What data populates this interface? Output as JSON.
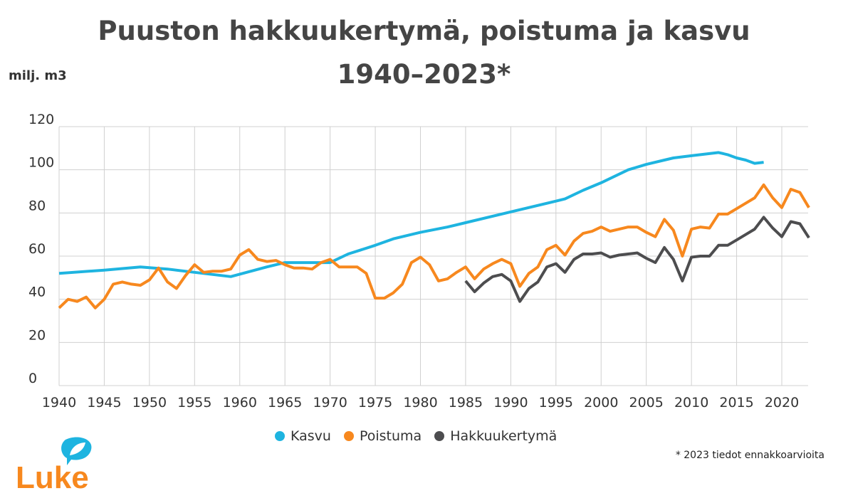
{
  "title_line1": "Puuston hakkuukertymä, poistuma ja kasvu",
  "title_line2": "1940–2023*",
  "footnote": "* 2023 tiedot ennakkoarvioita",
  "logo_text": "Luke",
  "chart_data": {
    "type": "line",
    "title": "Puuston hakkuukertymä, poistuma ja kasvu 1940–2023*",
    "ylabel": "milj. m3",
    "xlabel": "",
    "ylim": [
      0,
      120
    ],
    "xlim": [
      1940,
      2023
    ],
    "yticks": [
      "0",
      "20",
      "40",
      "60",
      "80",
      "100",
      "120"
    ],
    "xticks": [
      "1940",
      "1945",
      "1950",
      "1955",
      "1960",
      "1965",
      "1970",
      "1975",
      "1980",
      "1985",
      "1990",
      "1995",
      "2000",
      "2005",
      "2010",
      "2015",
      "2020"
    ],
    "grid": true,
    "legend_position": "bottom",
    "series": [
      {
        "name": "Kasvu",
        "color": "#1eb4e0",
        "x": [
          1940,
          1945,
          1949,
          1952,
          1955,
          1958,
          1959,
          1963,
          1965,
          1970,
          1972,
          1975,
          1977,
          1980,
          1983,
          1985,
          1990,
          1995,
          1996,
          1998,
          2000,
          2003,
          2005,
          2007,
          2008,
          2010,
          2012,
          2013,
          2014,
          2015,
          2016,
          2017,
          2018
        ],
        "values": [
          52,
          53.5,
          55,
          54,
          52.5,
          51,
          50.5,
          55,
          57,
          57,
          61,
          65,
          68,
          71,
          73.5,
          75.5,
          80.5,
          85.5,
          86.5,
          90.5,
          94,
          100,
          102.5,
          104.5,
          105.5,
          106.5,
          107.5,
          108,
          107,
          105.5,
          104.5,
          103,
          103.5
        ]
      },
      {
        "name": "Poistuma",
        "color": "#f7881e",
        "x": [
          1940,
          1941,
          1942,
          1943,
          1944,
          1945,
          1946,
          1947,
          1948,
          1949,
          1950,
          1951,
          1952,
          1953,
          1954,
          1955,
          1956,
          1957,
          1958,
          1959,
          1960,
          1961,
          1962,
          1963,
          1964,
          1965,
          1966,
          1967,
          1968,
          1969,
          1970,
          1971,
          1972,
          1973,
          1974,
          1975,
          1976,
          1977,
          1978,
          1979,
          1980,
          1981,
          1982,
          1983,
          1984,
          1985,
          1986,
          1987,
          1988,
          1989,
          1990,
          1991,
          1992,
          1993,
          1994,
          1995,
          1996,
          1997,
          1998,
          1999,
          2000,
          2001,
          2002,
          2003,
          2004,
          2005,
          2006,
          2007,
          2008,
          2009,
          2010,
          2011,
          2012,
          2013,
          2014,
          2015,
          2016,
          2017,
          2018,
          2019,
          2020,
          2021,
          2022,
          2023
        ],
        "values": [
          36,
          40,
          39,
          41,
          36,
          40,
          47,
          48,
          47,
          46.5,
          49,
          54.5,
          48,
          45,
          51,
          56,
          52.5,
          53,
          53,
          54,
          60.5,
          63,
          58.5,
          57.5,
          58,
          56,
          54.5,
          54.5,
          54,
          57,
          58.5,
          55,
          55,
          55,
          52,
          40.5,
          40.5,
          43,
          47,
          57,
          59.5,
          56,
          48.5,
          49.5,
          52.5,
          55,
          49.5,
          54,
          56.5,
          58.5,
          56.5,
          46,
          52,
          55,
          63,
          65,
          60.5,
          67,
          70.5,
          71.5,
          73.5,
          71.5,
          72.5,
          73.5,
          73.5,
          71,
          69,
          77,
          72,
          60,
          72.5,
          73.5,
          73,
          79.5,
          79.5,
          82,
          84.5,
          87,
          93,
          87,
          82.5,
          91,
          89.5,
          82.5
        ]
      },
      {
        "name": "Hakkuukertymä",
        "color": "#4d4d4f",
        "x": [
          1985,
          1986,
          1987,
          1988,
          1989,
          1990,
          1991,
          1992,
          1993,
          1994,
          1995,
          1996,
          1997,
          1998,
          1999,
          2000,
          2001,
          2002,
          2003,
          2004,
          2005,
          2006,
          2007,
          2008,
          2009,
          2010,
          2011,
          2012,
          2013,
          2014,
          2015,
          2016,
          2017,
          2018,
          2019,
          2020,
          2021,
          2022,
          2023
        ],
        "values": [
          48.5,
          43.5,
          47.5,
          50.5,
          51.5,
          48.5,
          39,
          45,
          48,
          55,
          56.5,
          52.5,
          58.5,
          61,
          61,
          61.5,
          59.5,
          60.5,
          61,
          61.5,
          59,
          57,
          64,
          58.5,
          48.5,
          59.5,
          60,
          60,
          65,
          65,
          67.5,
          70,
          72.5,
          78,
          73,
          69,
          76,
          75,
          68.5
        ]
      }
    ]
  }
}
